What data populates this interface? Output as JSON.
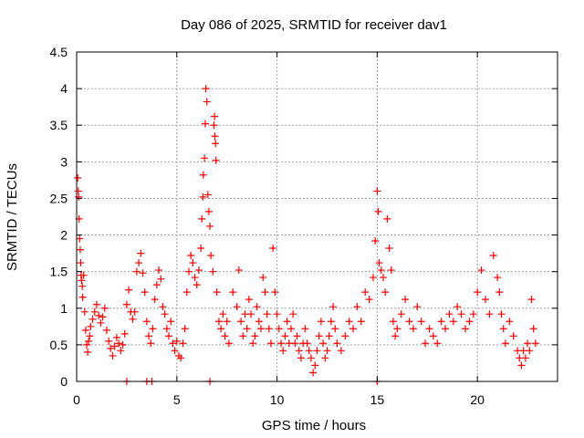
{
  "chart_data": {
    "type": "scatter",
    "title": "Day 086 of 2025, SRMTID for receiver dav1",
    "xlabel": "GPS time / hours",
    "ylabel": "SRMTID / TECUs",
    "xlim": [
      0,
      24
    ],
    "ylim": [
      0,
      4.5
    ],
    "x_ticks": [
      0,
      5,
      10,
      15,
      20
    ],
    "x_tick_labels": [
      "0",
      "5",
      "10",
      "15",
      "20"
    ],
    "y_ticks": [
      0,
      0.5,
      1,
      1.5,
      2,
      2.5,
      3,
      3.5,
      4,
      4.5
    ],
    "y_tick_labels": [
      "0",
      "0.5",
      "1",
      "1.5",
      "2",
      "2.5",
      "3",
      "3.5",
      "4",
      "4.5"
    ],
    "grid": true,
    "marker": "+",
    "series": [
      {
        "name": "SRMTID",
        "color": "#ff0000",
        "points": [
          [
            0.05,
            2.78
          ],
          [
            0.08,
            2.6
          ],
          [
            0.1,
            2.52
          ],
          [
            0.12,
            2.22
          ],
          [
            0.15,
            1.95
          ],
          [
            0.18,
            1.8
          ],
          [
            0.2,
            1.62
          ],
          [
            0.22,
            1.45
          ],
          [
            0.25,
            1.38
          ],
          [
            0.28,
            1.3
          ],
          [
            0.3,
            1.15
          ],
          [
            0.35,
            1.45
          ],
          [
            0.4,
            0.95
          ],
          [
            0.45,
            0.7
          ],
          [
            0.5,
            0.5
          ],
          [
            0.55,
            0.4
          ],
          [
            0.6,
            0.55
          ],
          [
            0.65,
            0.62
          ],
          [
            0.7,
            0.75
          ],
          [
            0.8,
            0.85
          ],
          [
            0.9,
            0.95
          ],
          [
            1.0,
            1.05
          ],
          [
            1.1,
            0.9
          ],
          [
            1.2,
            0.8
          ],
          [
            1.3,
            0.88
          ],
          [
            1.4,
            1.0
          ],
          [
            1.5,
            0.7
          ],
          [
            1.6,
            0.55
          ],
          [
            1.7,
            0.45
          ],
          [
            1.8,
            0.35
          ],
          [
            1.9,
            0.48
          ],
          [
            2.0,
            0.6
          ],
          [
            2.1,
            0.52
          ],
          [
            2.2,
            0.42
          ],
          [
            2.3,
            0.5
          ],
          [
            2.4,
            0.65
          ],
          [
            2.5,
            1.05
          ],
          [
            2.6,
            1.25
          ],
          [
            2.7,
            0.95
          ],
          [
            2.8,
            0.85
          ],
          [
            2.9,
            0.95
          ],
          [
            3.0,
            1.5
          ],
          [
            3.1,
            1.62
          ],
          [
            3.2,
            1.75
          ],
          [
            3.3,
            1.48
          ],
          [
            3.4,
            1.22
          ],
          [
            3.5,
            0.82
          ],
          [
            3.6,
            0.62
          ],
          [
            3.7,
            0.52
          ],
          [
            3.8,
            0.72
          ],
          [
            3.9,
            1.12
          ],
          [
            4.0,
            1.32
          ],
          [
            4.1,
            1.52
          ],
          [
            4.2,
            1.4
          ],
          [
            4.3,
            1.02
          ],
          [
            4.4,
            0.92
          ],
          [
            4.5,
            0.72
          ],
          [
            4.6,
            0.62
          ],
          [
            4.7,
            0.82
          ],
          [
            4.8,
            0.52
          ],
          [
            4.9,
            0.42
          ],
          [
            5.0,
            0.55
          ],
          [
            5.1,
            0.35
          ],
          [
            5.2,
            0.32
          ],
          [
            5.3,
            0.52
          ],
          [
            5.4,
            0.72
          ],
          [
            5.5,
            1.22
          ],
          [
            5.6,
            1.5
          ],
          [
            5.7,
            1.72
          ],
          [
            5.8,
            1.62
          ],
          [
            5.9,
            1.42
          ],
          [
            6.0,
            1.32
          ],
          [
            6.1,
            1.52
          ],
          [
            6.2,
            1.82
          ],
          [
            6.25,
            2.22
          ],
          [
            6.3,
            2.52
          ],
          [
            6.32,
            2.82
          ],
          [
            6.38,
            3.05
          ],
          [
            6.42,
            3.52
          ],
          [
            6.45,
            4.0
          ],
          [
            6.5,
            3.82
          ],
          [
            6.55,
            2.55
          ],
          [
            6.6,
            2.32
          ],
          [
            6.65,
            2.12
          ],
          [
            6.7,
            1.72
          ],
          [
            6.8,
            1.5
          ],
          [
            6.85,
            3.5
          ],
          [
            6.88,
            3.62
          ],
          [
            6.9,
            3.35
          ],
          [
            6.93,
            3.25
          ],
          [
            6.95,
            3.02
          ],
          [
            7.0,
            1.22
          ],
          [
            7.1,
            0.82
          ],
          [
            7.2,
            0.72
          ],
          [
            7.3,
            0.92
          ],
          [
            7.4,
            0.62
          ],
          [
            7.5,
            0.82
          ],
          [
            7.6,
            0.52
          ],
          [
            7.8,
            1.22
          ],
          [
            8.0,
            1.02
          ],
          [
            8.1,
            1.52
          ],
          [
            8.2,
            0.82
          ],
          [
            8.3,
            0.62
          ],
          [
            8.4,
            0.92
          ],
          [
            8.5,
            0.72
          ],
          [
            8.6,
            1.12
          ],
          [
            8.7,
            0.92
          ],
          [
            8.8,
            0.52
          ],
          [
            8.9,
            0.62
          ],
          [
            9.0,
            1.02
          ],
          [
            9.1,
            0.82
          ],
          [
            9.2,
            0.72
          ],
          [
            9.3,
            1.42
          ],
          [
            9.4,
            1.22
          ],
          [
            9.5,
            0.92
          ],
          [
            9.6,
            0.72
          ],
          [
            9.7,
            0.52
          ],
          [
            9.8,
            1.82
          ],
          [
            9.9,
            1.22
          ],
          [
            10.0,
            0.92
          ],
          [
            10.1,
            0.72
          ],
          [
            10.2,
            0.52
          ],
          [
            10.3,
            0.42
          ],
          [
            10.4,
            0.62
          ],
          [
            10.5,
            0.82
          ],
          [
            10.6,
            0.52
          ],
          [
            10.7,
            0.72
          ],
          [
            10.8,
            0.92
          ],
          [
            10.9,
            0.52
          ],
          [
            11.0,
            0.62
          ],
          [
            11.1,
            0.42
          ],
          [
            11.2,
            0.32
          ],
          [
            11.3,
            0.52
          ],
          [
            11.4,
            0.72
          ],
          [
            11.5,
            0.52
          ],
          [
            11.6,
            0.42
          ],
          [
            11.7,
            0.32
          ],
          [
            11.8,
            0.12
          ],
          [
            11.9,
            0.22
          ],
          [
            12.0,
            0.42
          ],
          [
            12.1,
            0.62
          ],
          [
            12.2,
            0.82
          ],
          [
            12.3,
            0.52
          ],
          [
            12.4,
            0.32
          ],
          [
            12.5,
            0.42
          ],
          [
            12.6,
            0.62
          ],
          [
            12.7,
            0.82
          ],
          [
            12.8,
            1.02
          ],
          [
            12.9,
            0.72
          ],
          [
            13.0,
            0.52
          ],
          [
            13.2,
            0.42
          ],
          [
            13.4,
            0.62
          ],
          [
            13.6,
            0.82
          ],
          [
            13.8,
            0.72
          ],
          [
            14.0,
            1.02
          ],
          [
            14.2,
            0.82
          ],
          [
            14.4,
            1.22
          ],
          [
            14.6,
            1.12
          ],
          [
            14.8,
            1.42
          ],
          [
            14.9,
            1.92
          ],
          [
            15.0,
            2.6
          ],
          [
            15.05,
            2.32
          ],
          [
            15.1,
            1.62
          ],
          [
            15.2,
            1.52
          ],
          [
            15.3,
            1.42
          ],
          [
            15.4,
            1.22
          ],
          [
            15.5,
            2.22
          ],
          [
            15.6,
            1.82
          ],
          [
            15.7,
            1.52
          ],
          [
            15.8,
            0.82
          ],
          [
            15.9,
            0.62
          ],
          [
            16.0,
            0.72
          ],
          [
            16.2,
            0.92
          ],
          [
            16.4,
            1.12
          ],
          [
            16.6,
            0.82
          ],
          [
            16.8,
            0.72
          ],
          [
            17.0,
            1.02
          ],
          [
            17.2,
            0.82
          ],
          [
            17.4,
            0.52
          ],
          [
            17.6,
            0.72
          ],
          [
            17.8,
            0.62
          ],
          [
            18.0,
            0.52
          ],
          [
            18.2,
            0.82
          ],
          [
            18.4,
            0.72
          ],
          [
            18.6,
            0.92
          ],
          [
            18.8,
            0.82
          ],
          [
            19.0,
            1.02
          ],
          [
            19.2,
            0.92
          ],
          [
            19.4,
            0.72
          ],
          [
            19.6,
            0.82
          ],
          [
            19.8,
            0.92
          ],
          [
            20.0,
            1.22
          ],
          [
            20.2,
            1.52
          ],
          [
            20.4,
            1.12
          ],
          [
            20.6,
            0.92
          ],
          [
            20.8,
            1.72
          ],
          [
            21.0,
            1.42
          ],
          [
            21.1,
            1.22
          ],
          [
            21.2,
            0.92
          ],
          [
            21.3,
            0.72
          ],
          [
            21.4,
            0.52
          ],
          [
            21.6,
            0.82
          ],
          [
            21.8,
            0.62
          ],
          [
            22.0,
            0.42
          ],
          [
            22.1,
            0.32
          ],
          [
            22.2,
            0.22
          ],
          [
            22.3,
            0.42
          ],
          [
            22.4,
            0.32
          ],
          [
            22.5,
            0.52
          ],
          [
            22.6,
            0.42
          ],
          [
            22.7,
            1.12
          ],
          [
            22.8,
            0.72
          ],
          [
            22.9,
            0.52
          ],
          [
            2.5,
            0.0
          ],
          [
            3.5,
            0.0
          ],
          [
            3.75,
            0.0
          ],
          [
            6.65,
            0.0
          ],
          [
            15.0,
            0.0
          ]
        ]
      }
    ]
  }
}
